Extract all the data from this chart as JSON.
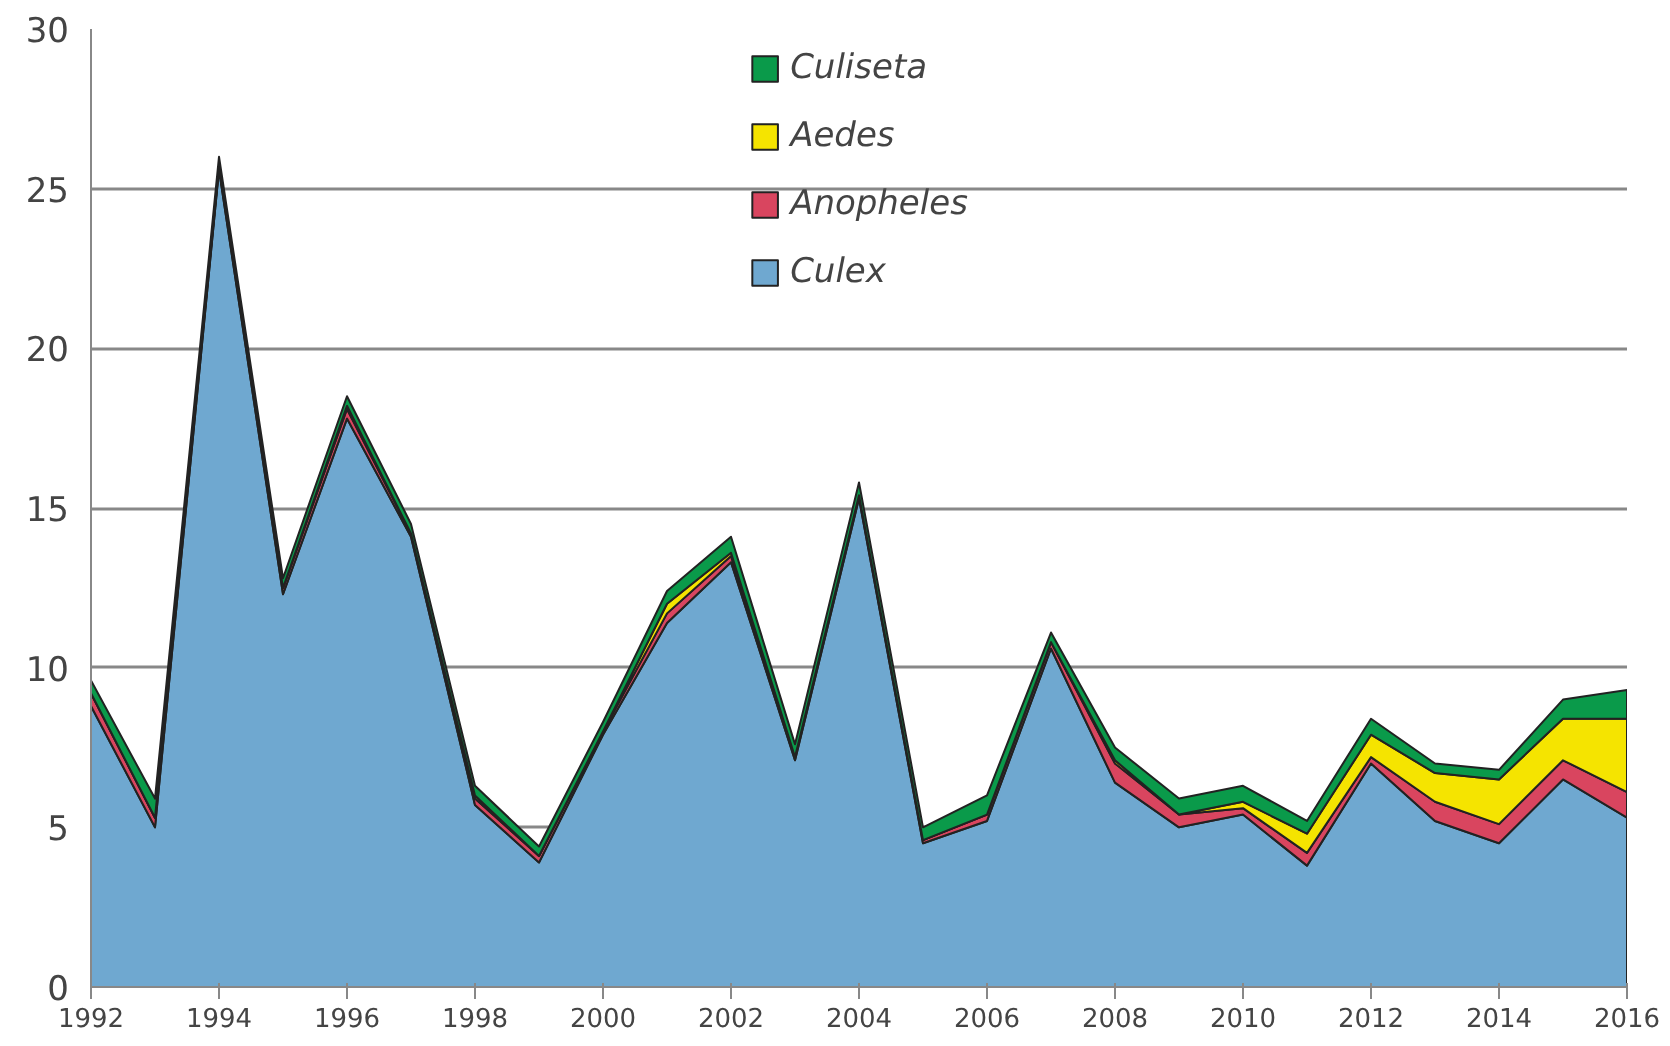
{
  "chart_data": {
    "type": "area",
    "stacked": true,
    "x": [
      1992,
      1993,
      1994,
      1995,
      1996,
      1997,
      1998,
      1999,
      2000,
      2001,
      2002,
      2003,
      2004,
      2005,
      2006,
      2007,
      2008,
      2009,
      2010,
      2011,
      2012,
      2013,
      2014,
      2015,
      2016
    ],
    "series": [
      {
        "name": "Culex",
        "color": "#6fa8d0",
        "values": [
          8.8,
          5.0,
          25.6,
          12.3,
          17.8,
          14.1,
          5.7,
          3.9,
          7.9,
          11.4,
          13.3,
          7.1,
          15.3,
          4.5,
          5.2,
          10.6,
          6.4,
          5.0,
          5.4,
          3.8,
          7.0,
          5.2,
          4.5,
          6.5,
          5.3
        ]
      },
      {
        "name": "Anopheles",
        "color": "#d9455f",
        "values": [
          0.4,
          0.3,
          0.1,
          0.2,
          0.3,
          0.1,
          0.2,
          0.2,
          0.1,
          0.3,
          0.2,
          0.1,
          0.1,
          0.1,
          0.2,
          0.2,
          0.6,
          0.4,
          0.2,
          0.4,
          0.2,
          0.6,
          0.6,
          0.6,
          0.8
        ]
      },
      {
        "name": "Aedes",
        "color": "#f5e400",
        "values": [
          0,
          0,
          0,
          0,
          0.1,
          0,
          0.1,
          0,
          0,
          0.3,
          0.1,
          0,
          0,
          0,
          0,
          0,
          0.1,
          0,
          0.2,
          0.6,
          0.7,
          0.9,
          1.4,
          1.3,
          2.3
        ]
      },
      {
        "name": "Culiseta",
        "color": "#0a9a4a",
        "values": [
          0.4,
          0.6,
          0.3,
          0.3,
          0.3,
          0.3,
          0.3,
          0.3,
          0.3,
          0.4,
          0.5,
          0.4,
          0.4,
          0.4,
          0.6,
          0.3,
          0.4,
          0.5,
          0.5,
          0.4,
          0.5,
          0.3,
          0.3,
          0.6,
          0.9
        ]
      }
    ],
    "xlim": [
      1992,
      2016
    ],
    "ylim": [
      0,
      30
    ],
    "xticks": [
      1992,
      1994,
      1996,
      1998,
      2000,
      2002,
      2004,
      2006,
      2008,
      2010,
      2012,
      2014,
      2016
    ],
    "yticks": [
      0,
      5,
      10,
      15,
      20,
      25,
      30
    ],
    "grid": "y",
    "legend": "top"
  }
}
